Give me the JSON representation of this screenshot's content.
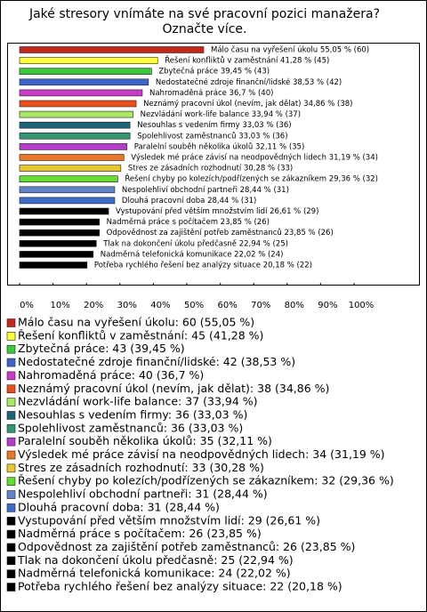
{
  "chart_data": {
    "type": "bar",
    "orientation": "horizontal",
    "title": "Jaké stresory vnímáte na své pracovní pozici manažera? Označte více.",
    "values": [
      55.05,
      41.28,
      39.45,
      38.53,
      36.7,
      34.86,
      33.94,
      33.03,
      33.03,
      32.11,
      31.19,
      30.28,
      29.36,
      28.44,
      28.44,
      26.61,
      23.85,
      23.85,
      22.94,
      22.02,
      20.18
    ],
    "value_labels": [
      "Málo času na vyřešení úkolu 55,05 % (60)",
      "Řešení konfliktů v zaměstnání 41,28 % (45)",
      "Zbytečná práce 39,45 % (43)",
      "Nedostatečné zdroje finanční/lidské 38,53 % (42)",
      "Nahromaděná práce 36,7 % (40)",
      "Neznámý pracovní úkol (nevím, jak dělat) 34,86 % (38)",
      "Nezvládání work-life balance 33,94 % (37)",
      "Nesouhlas s vedením firmy 33,03 % (36)",
      "Spolehlivost zaměstnanců 33,03 % (36)",
      "Paralelní souběh několika úkolů 32,11 % (35)",
      "Výsledek mé práce závisí na neodpovědných lidech 31,19 % (34)",
      "Stres ze zásadních rozhodnutí 30,28 % (33)",
      "Řešení chyby po kolezích/podřízených se zákazníkem 29,36 % (32)",
      "Nespolehliví obchodní partneři 28,44 % (31)",
      "Dlouhá pracovní doba 28,44 % (31)",
      "Vystupování před větším množstvím lidí 26,61 % (29)",
      "Nadměrná práce s počítačem 23,85 % (26)",
      "Odpovědnost za zajištění potřeb zaměstnanců 23,85 % (26)",
      "Tlak na dokončení úkolu předčasně 22,94 % (25)",
      "Nadměrná telefonická komunikace 22,02 % (24)",
      "Potřeba rychlého řešení bez analýzy situace 20,18 % (22)"
    ],
    "legend_labels": [
      "Málo času na vyřešení úkolu: 60 (55,05 %)",
      "Řešení konfliktů v zaměstnání: 45 (41,28 %)",
      "Zbytečná práce: 43 (39,45 %)",
      "Nedostatečné zdroje finanční/lidské: 42 (38,53 %)",
      "Nahromaděná práce: 40 (36,7 %)",
      "Neznámý pracovní úkol (nevím, jak dělat): 38 (34,86 %)",
      "Nezvládání work-life balance: 37 (33,94 %)",
      "Nesouhlas s vedením firmy: 36 (33,03 %)",
      "Spolehlivost zaměstnanců: 36 (33,03 %)",
      "Paralelní souběh několika úkolů: 35 (32,11 %)",
      "Výsledek mé práce závisí na neodpovědných lidech: 34 (31,19 %)",
      "Stres ze zásadních rozhodnutí: 33 (30,28 %)",
      "Řešení chyby po kolezích/podřízených se zákazníkem: 32 (29,36 %)",
      "Nespolehliví obchodní partneři: 31 (28,44 %)",
      "Dlouhá pracovní doba: 31 (28,44 %)",
      "Vystupování před větším množstvím lidí: 29 (26,61 %)",
      "Nadměrná práce s počítačem: 26 (23,85 %)",
      "Odpovědnost za zajištění potřeb zaměstnanců: 26 (23,85 %)",
      "Tlak na dokončení úkolu předčasně: 25 (22,94 %)",
      "Nadměrná telefonická komunikace: 24 (22,02 %)",
      "Potřeba rychlého řešení bez analýzy situace: 22 (20,18 %)"
    ],
    "colors": [
      "#c0281e",
      "#ffff3c",
      "#3cc83c",
      "#3c64c8",
      "#c83cc8",
      "#e8501e",
      "#a8e864",
      "#1e6478",
      "#32966e",
      "#b43cc8",
      "#e87828",
      "#e8c832",
      "#64dc32",
      "#6482c8",
      "#3c6ec8",
      "#000000",
      "#000000",
      "#000000",
      "#000000",
      "#000000",
      "#000000"
    ],
    "xlim": [
      0,
      100
    ],
    "xticks": [
      {
        "value": 0,
        "label": "0%"
      },
      {
        "value": 10,
        "label": "10%"
      },
      {
        "value": 20,
        "label": "20%"
      },
      {
        "value": 30,
        "label": "30%"
      },
      {
        "value": 40,
        "label": "40%"
      },
      {
        "value": 50,
        "label": "50%"
      },
      {
        "value": 60,
        "label": "60%"
      },
      {
        "value": 70,
        "label": "70%"
      },
      {
        "value": 80,
        "label": "80%"
      },
      {
        "value": 90,
        "label": "90%"
      },
      {
        "value": 100,
        "label": "100%"
      }
    ]
  }
}
